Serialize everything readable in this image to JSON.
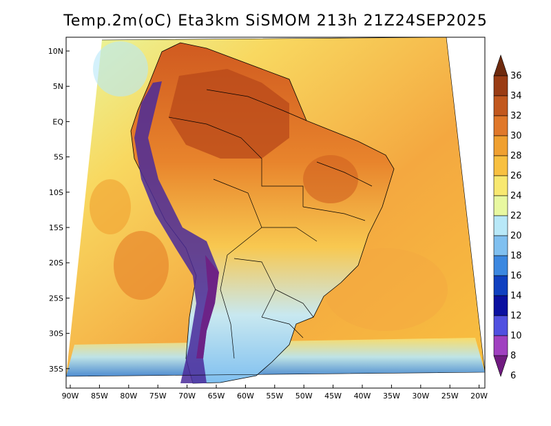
{
  "title": "Temp.2m(oC) Eta3km SiSMOM 213h 21Z24SEP2025",
  "lat_labels": [
    "10N",
    "5N",
    "EQ",
    "5S",
    "10S",
    "15S",
    "20S",
    "25S",
    "30S",
    "35S"
  ],
  "lon_labels": [
    "90W",
    "85W",
    "80W",
    "75W",
    "70W",
    "65W",
    "60W",
    "55W",
    "50W",
    "45W",
    "40W",
    "35W",
    "30W",
    "25W",
    "20W"
  ],
  "colorbar": {
    "labels": [
      "36",
      "34",
      "32",
      "30",
      "28",
      "26",
      "24",
      "22",
      "20",
      "18",
      "16",
      "14",
      "12",
      "10",
      "8",
      "6"
    ],
    "colors": [
      "#6e2a0e",
      "#9a3c14",
      "#c2581e",
      "#e0782a",
      "#f0a030",
      "#f8c040",
      "#f8e870",
      "#e8f8a0",
      "#b8e8f8",
      "#80c0f0",
      "#3c88e0",
      "#1040c0",
      "#0a10a0",
      "#5050e0",
      "#a040c0",
      "#701a80"
    ]
  },
  "map": {
    "background_color": "#f4b04a",
    "land_color_warm": "#dd7a2c",
    "andes_color": "#4a2a9a",
    "south_cool_color": "#8cc8f0"
  }
}
